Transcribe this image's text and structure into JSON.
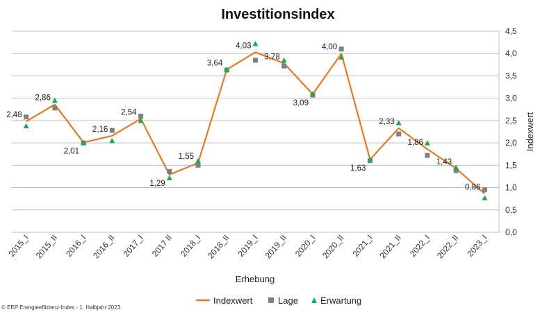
{
  "chart_data": {
    "type": "line",
    "title": "Investitionsindex",
    "xlabel": "Erhebung",
    "ylabel": "Indexwert",
    "ylim": [
      0,
      4.5
    ],
    "yticks": [
      "0,0",
      "0,5",
      "1,0",
      "1,5",
      "2,0",
      "2,5",
      "3,0",
      "3,5",
      "4,0",
      "4,5"
    ],
    "categories": [
      "2015_I",
      "2015_II",
      "2016_I",
      "2016_II",
      "2017_I",
      "2017 II",
      "2018_I",
      "2018_II",
      "2019_I",
      "2019_II",
      "2020_I",
      "2020_II",
      "2021_I",
      "2021_II",
      "2022_I",
      "2022_II",
      "2023_I"
    ],
    "series": [
      {
        "name": "Indexwert",
        "type": "line",
        "color": "#E87722",
        "values": [
          2.48,
          2.86,
          2.01,
          2.16,
          2.54,
          1.29,
          1.55,
          3.64,
          4.03,
          3.78,
          3.09,
          4.0,
          1.63,
          2.33,
          1.86,
          1.43,
          0.86
        ],
        "labels": [
          "2,48",
          "2,86",
          "2,01",
          "2,16",
          "2,54",
          "1,29",
          "1,55",
          "3,64",
          "4,03",
          "3,78",
          "3,09",
          "4,00",
          "1,63",
          "2,33",
          "1,86",
          "1,43",
          "0,86"
        ]
      },
      {
        "name": "Lage",
        "type": "scatter",
        "marker": "square",
        "color": "#808080",
        "values": [
          2.58,
          2.78,
          2.0,
          2.28,
          2.6,
          1.36,
          1.5,
          3.63,
          3.85,
          3.72,
          3.07,
          4.1,
          1.6,
          2.2,
          1.72,
          1.38,
          0.95
        ]
      },
      {
        "name": "Erwartung",
        "type": "scatter",
        "marker": "triangle",
        "color": "#1AAB4B",
        "values": [
          2.38,
          2.95,
          2.0,
          2.05,
          2.5,
          1.22,
          1.6,
          3.65,
          4.22,
          3.85,
          3.1,
          3.92,
          1.63,
          2.45,
          2.0,
          1.45,
          0.77
        ]
      }
    ],
    "legend": "bottom",
    "grid": true
  },
  "footer": {
    "copyright": "© EEP Energieeffizienz-Index - 1. Halbjahr 2023"
  }
}
